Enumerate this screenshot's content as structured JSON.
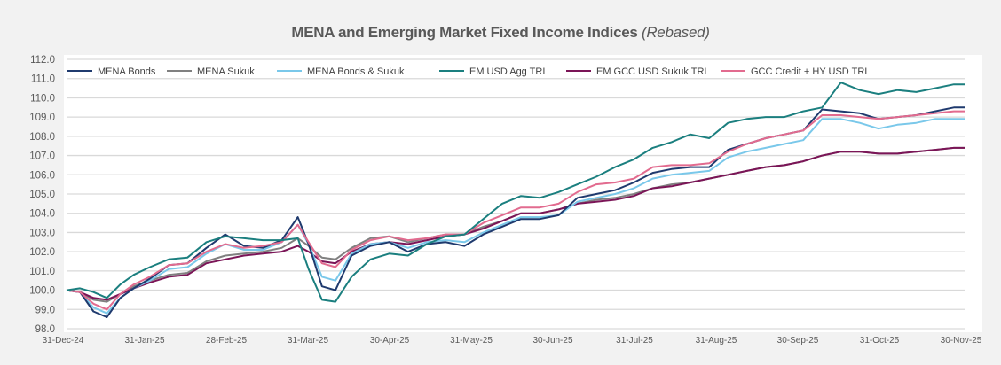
{
  "chart_data": {
    "type": "line",
    "title": "MENA and Emerging Market Fixed Income Indices",
    "subtitle": "(Rebased)",
    "xlabel": "",
    "ylabel": "",
    "ylim": [
      98.0,
      112.0
    ],
    "ytick_step": 1.0,
    "yticks": [
      "98.0",
      "99.0",
      "100.0",
      "101.0",
      "102.0",
      "103.0",
      "104.0",
      "105.0",
      "106.0",
      "107.0",
      "108.0",
      "109.0",
      "110.0",
      "111.0",
      "112.0"
    ],
    "xtick_labels": [
      "31-Dec-24",
      "31-Jan-25",
      "28-Feb-25",
      "31-Mar-25",
      "30-Apr-25",
      "31-May-25",
      "30-Jun-25",
      "31-Jul-25",
      "31-Aug-25",
      "30-Sep-25",
      "31-Oct-25",
      "30-Nov-25"
    ],
    "grid": true,
    "legend_position": "top",
    "x": [
      0,
      5,
      10,
      15,
      20,
      25,
      31,
      38,
      45,
      52,
      59,
      66,
      73,
      80,
      86,
      90,
      95,
      100,
      106,
      113,
      120,
      127,
      134,
      141,
      148,
      155,
      162,
      169,
      176,
      183,
      190,
      197,
      204,
      211,
      218,
      225,
      232,
      239,
      246,
      253,
      260,
      267,
      274,
      281,
      288,
      295,
      302,
      309,
      316,
      323,
      330,
      334
    ],
    "x_unit": "days since 31-Dec-24",
    "series": [
      {
        "name": "MENA Bonds",
        "color": "#1f3a6e",
        "values": [
          100.0,
          99.9,
          98.9,
          98.6,
          99.6,
          100.1,
          100.6,
          101.3,
          101.4,
          102.2,
          102.9,
          102.3,
          102.2,
          102.6,
          103.8,
          102.4,
          100.2,
          100.0,
          101.8,
          102.3,
          102.5,
          102.0,
          102.4,
          102.5,
          102.3,
          102.9,
          103.3,
          103.7,
          103.7,
          103.9,
          104.8,
          105.0,
          105.2,
          105.6,
          106.1,
          106.3,
          106.4,
          106.4,
          107.3,
          107.6,
          107.9,
          108.1,
          108.3,
          109.4,
          109.3,
          109.2,
          108.9,
          109.0,
          109.1,
          109.3,
          109.5,
          109.5
        ]
      },
      {
        "name": "MENA Sukuk",
        "color": "#808080",
        "values": [
          100.0,
          99.9,
          99.5,
          99.4,
          99.8,
          100.2,
          100.5,
          100.8,
          100.9,
          101.5,
          101.8,
          101.9,
          102.0,
          102.2,
          102.7,
          102.3,
          101.7,
          101.6,
          102.2,
          102.7,
          102.8,
          102.5,
          102.7,
          102.9,
          102.9,
          103.3,
          103.6,
          104.0,
          104.0,
          104.2,
          104.5,
          104.7,
          104.8,
          105.0,
          105.3,
          105.5,
          105.6,
          105.8,
          106.0,
          106.2,
          106.4,
          106.5,
          106.7,
          107.0,
          107.2,
          107.2,
          107.1,
          107.1,
          107.2,
          107.3,
          107.4,
          107.4
        ]
      },
      {
        "name": "MENA Bonds & Sukuk",
        "color": "#7ac8ea",
        "values": [
          100.0,
          99.9,
          99.1,
          98.8,
          99.6,
          100.1,
          100.5,
          101.1,
          101.2,
          101.9,
          102.4,
          102.1,
          102.1,
          102.5,
          103.4,
          102.4,
          100.7,
          100.5,
          101.9,
          102.4,
          102.5,
          102.2,
          102.5,
          102.6,
          102.5,
          103.0,
          103.4,
          103.8,
          103.8,
          103.9,
          104.6,
          104.8,
          105.0,
          105.3,
          105.8,
          106.0,
          106.1,
          106.2,
          106.9,
          107.2,
          107.4,
          107.6,
          107.8,
          108.9,
          108.9,
          108.7,
          108.4,
          108.6,
          108.7,
          108.9,
          108.9,
          108.9
        ]
      },
      {
        "name": "EM USD Agg TRI",
        "color": "#1b7f7f",
        "values": [
          100.0,
          100.1,
          99.9,
          99.6,
          100.3,
          100.8,
          101.2,
          101.6,
          101.7,
          102.5,
          102.8,
          102.7,
          102.6,
          102.6,
          102.7,
          101.1,
          99.5,
          99.4,
          100.7,
          101.6,
          101.9,
          101.8,
          102.4,
          102.8,
          102.9,
          103.7,
          104.5,
          104.9,
          104.8,
          105.1,
          105.5,
          105.9,
          106.4,
          106.8,
          107.4,
          107.7,
          108.1,
          107.9,
          108.7,
          108.9,
          109.0,
          109.0,
          109.3,
          109.5,
          110.8,
          110.4,
          110.2,
          110.4,
          110.3,
          110.5,
          110.7,
          110.7
        ]
      },
      {
        "name": "EM GCC USD Sukuk TRI",
        "color": "#7b1557",
        "values": [
          100.0,
          99.9,
          99.6,
          99.5,
          99.8,
          100.1,
          100.4,
          100.7,
          100.8,
          101.4,
          101.6,
          101.8,
          101.9,
          102.0,
          102.3,
          102.0,
          101.5,
          101.4,
          102.0,
          102.4,
          102.5,
          102.4,
          102.6,
          102.8,
          102.9,
          103.2,
          103.6,
          104.0,
          104.0,
          104.2,
          104.5,
          104.6,
          104.7,
          104.9,
          105.3,
          105.4,
          105.6,
          105.8,
          106.0,
          106.2,
          106.4,
          106.5,
          106.7,
          107.0,
          107.2,
          107.2,
          107.1,
          107.1,
          107.2,
          107.3,
          107.4,
          107.4
        ]
      },
      {
        "name": "GCC Credit + HY USD TRI",
        "color": "#e26b8f",
        "values": [
          100.0,
          99.9,
          99.3,
          99.0,
          99.8,
          100.3,
          100.7,
          101.3,
          101.4,
          102.0,
          102.4,
          102.2,
          102.3,
          102.5,
          103.4,
          102.5,
          101.4,
          101.2,
          102.1,
          102.6,
          102.8,
          102.6,
          102.7,
          102.9,
          102.9,
          103.5,
          103.9,
          104.3,
          104.3,
          104.5,
          105.1,
          105.5,
          105.6,
          105.8,
          106.4,
          106.5,
          106.5,
          106.6,
          107.2,
          107.6,
          107.9,
          108.1,
          108.3,
          109.1,
          109.1,
          109.0,
          108.9,
          109.0,
          109.1,
          109.2,
          109.3,
          109.3
        ]
      }
    ]
  }
}
